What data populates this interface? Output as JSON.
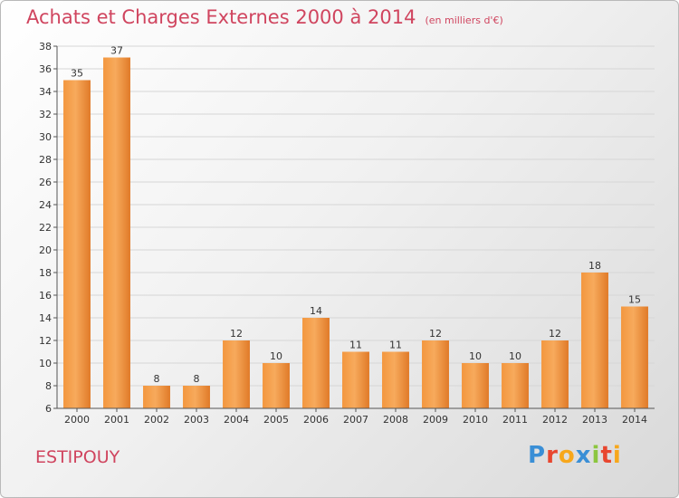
{
  "header": {
    "title": "Achats et Charges Externes 2000 à 2014",
    "unit": "(en milliers d'€)"
  },
  "location": "ESTIPOUY",
  "logo": {
    "text": "Proxiti",
    "colors": [
      "#3a8fd6",
      "#e8462f",
      "#f7a71b",
      "#3a8fd6",
      "#8cc63f",
      "#e8462f",
      "#f7a71b"
    ]
  },
  "chart_data": {
    "type": "bar",
    "title": "Achats et Charges Externes 2000 à 2014",
    "subtitle": "(en milliers d'€)",
    "categories": [
      "2000",
      "2001",
      "2002",
      "2003",
      "2004",
      "2005",
      "2006",
      "2007",
      "2008",
      "2009",
      "2010",
      "2011",
      "2012",
      "2013",
      "2014"
    ],
    "values": [
      35,
      37,
      8,
      8,
      12,
      10,
      14,
      11,
      11,
      12,
      10,
      10,
      12,
      18,
      15
    ],
    "ylim": [
      6,
      38
    ],
    "yticks": [
      6,
      8,
      10,
      12,
      14,
      16,
      18,
      20,
      22,
      24,
      26,
      28,
      30,
      32,
      34,
      36,
      38
    ],
    "grid": true,
    "bar_color_light": "#f7a85a",
    "bar_color_dark": "#d86c1c"
  }
}
